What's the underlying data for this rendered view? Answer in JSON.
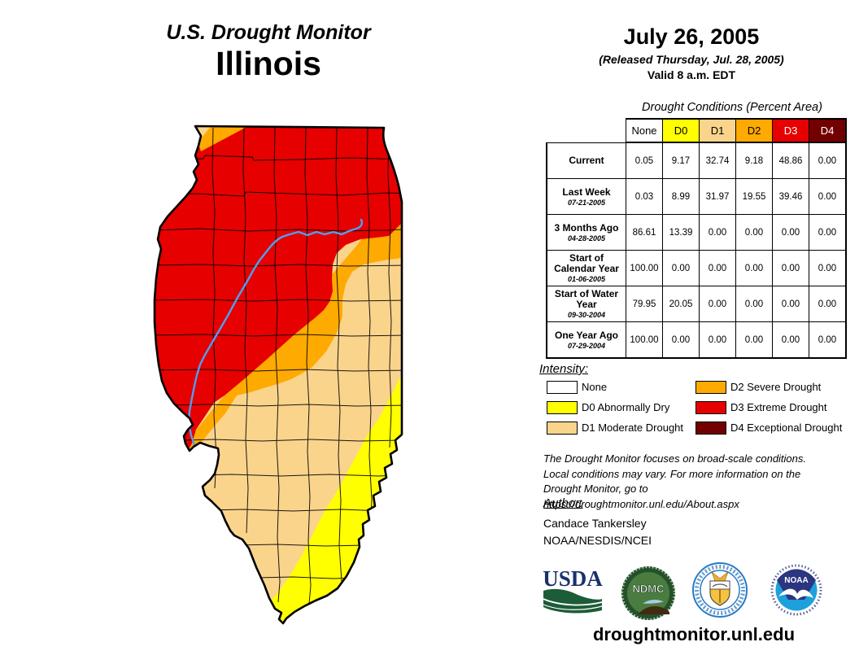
{
  "title_block": {
    "program": "U.S. Drought Monitor",
    "region": "Illinois"
  },
  "date_block": {
    "date": "July 26, 2005",
    "released": "(Released Thursday, Jul. 28, 2005)",
    "valid": "Valid 8 a.m. EDT"
  },
  "table": {
    "title": "Drought Conditions (Percent Area)",
    "columns": [
      "None",
      "D0",
      "D1",
      "D2",
      "D3",
      "D4"
    ],
    "rows": [
      {
        "label": "Current",
        "date": "",
        "values": [
          "0.05",
          "9.17",
          "32.74",
          "9.18",
          "48.86",
          "0.00"
        ]
      },
      {
        "label": "Last Week",
        "date": "07-21-2005",
        "values": [
          "0.03",
          "8.99",
          "31.97",
          "19.55",
          "39.46",
          "0.00"
        ]
      },
      {
        "label": "3 Months Ago",
        "date": "04-28-2005",
        "values": [
          "86.61",
          "13.39",
          "0.00",
          "0.00",
          "0.00",
          "0.00"
        ]
      },
      {
        "label": "Start of Calendar Year",
        "date": "01-06-2005",
        "values": [
          "100.00",
          "0.00",
          "0.00",
          "0.00",
          "0.00",
          "0.00"
        ]
      },
      {
        "label": "Start of Water Year",
        "date": "09-30-2004",
        "values": [
          "79.95",
          "20.05",
          "0.00",
          "0.00",
          "0.00",
          "0.00"
        ]
      },
      {
        "label": "One Year Ago",
        "date": "07-29-2004",
        "values": [
          "100.00",
          "0.00",
          "0.00",
          "0.00",
          "0.00",
          "0.00"
        ]
      }
    ]
  },
  "legend": {
    "heading": "Intensity:",
    "items": [
      {
        "code": "None",
        "label": "None",
        "color": "#FFFFFF"
      },
      {
        "code": "D0",
        "label": "D0 Abnormally Dry",
        "color": "#FFFF00"
      },
      {
        "code": "D1",
        "label": "D1 Moderate Drought",
        "color": "#FBD48C"
      },
      {
        "code": "D2",
        "label": "D2 Severe Drought",
        "color": "#FFAA00"
      },
      {
        "code": "D3",
        "label": "D3 Extreme Drought",
        "color": "#E60000"
      },
      {
        "code": "D4",
        "label": "D4 Exceptional Drought",
        "color": "#730000"
      }
    ]
  },
  "disclaimer_lines": [
    "The Drought Monitor focuses on broad-scale conditions.",
    "Local conditions may vary. For more information on the",
    "Drought Monitor, go to https://droughtmonitor.unl.edu/About.aspx"
  ],
  "author_block": {
    "heading": "Author:",
    "name": "Candace Tankersley",
    "agency": "NOAA/NESDIS/NCEI"
  },
  "footer": {
    "site": "droughtmonitor.unl.edu"
  },
  "logos": [
    {
      "name": "usda-logo",
      "text": "USDA"
    },
    {
      "name": "ndmc-logo",
      "text": "NDMC"
    },
    {
      "name": "doc-seal-logo",
      "text": ""
    },
    {
      "name": "noaa-logo",
      "text": "NOAA"
    }
  ],
  "colors": {
    "none": "#FFFFFF",
    "d0": "#FFFF00",
    "d1": "#FBD48C",
    "d2": "#FFAA00",
    "d3": "#E60000",
    "d4": "#730000",
    "river": "#4DA0F2"
  },
  "chart_data": {
    "type": "table",
    "title": "Drought Conditions (Percent Area)",
    "columns": [
      "None",
      "D0",
      "D1",
      "D2",
      "D3",
      "D4"
    ],
    "rows": [
      [
        "Current",
        0.05,
        9.17,
        32.74,
        9.18,
        48.86,
        0.0
      ],
      [
        "Last Week (07-21-2005)",
        0.03,
        8.99,
        31.97,
        19.55,
        39.46,
        0.0
      ],
      [
        "3 Months Ago (04-28-2005)",
        86.61,
        13.39,
        0.0,
        0.0,
        0.0,
        0.0
      ],
      [
        "Start of Calendar Year (01-06-2005)",
        100.0,
        0.0,
        0.0,
        0.0,
        0.0,
        0.0
      ],
      [
        "Start of Water Year (09-30-2004)",
        79.95,
        20.05,
        0.0,
        0.0,
        0.0,
        0.0
      ],
      [
        "One Year Ago (07-29-2004)",
        100.0,
        0.0,
        0.0,
        0.0,
        0.0,
        0.0
      ]
    ]
  }
}
